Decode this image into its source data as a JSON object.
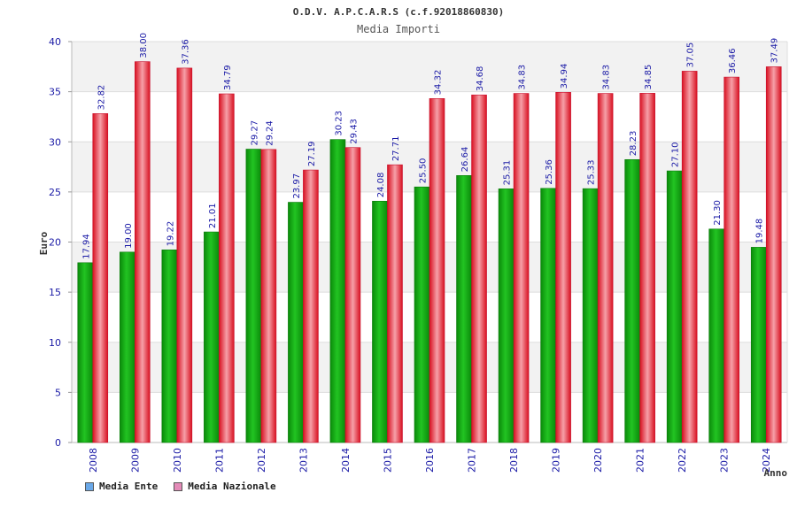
{
  "colors": {
    "ente": "#1fb51f",
    "ente_dark": "#0b7a0b",
    "nazionale": "#f0364a",
    "nazionale_dark": "#c8102e",
    "legend_ente": "#6aa8e8",
    "legend_nazionale": "#e48bb8",
    "band": "#f2f2f2"
  },
  "legend": {
    "ente": "Media Ente",
    "nazionale": "Media Nazionale"
  },
  "chart_data": {
    "type": "bar",
    "title": "O.D.V. A.P.C.A.R.S (c.f.92018860830)",
    "subtitle": "Media Importi",
    "xlabel": "Anno",
    "ylabel": "Euro",
    "ylim": [
      0,
      40
    ],
    "yticks": [
      0,
      5,
      10,
      15,
      20,
      25,
      30,
      35,
      40
    ],
    "categories": [
      "2008",
      "2009",
      "2010",
      "2011",
      "2012",
      "2013",
      "2014",
      "2015",
      "2016",
      "2017",
      "2018",
      "2019",
      "2020",
      "2021",
      "2022",
      "2023",
      "2024"
    ],
    "series": [
      {
        "name": "Media Ente",
        "values": [
          17.94,
          19.0,
          19.22,
          21.01,
          29.27,
          23.97,
          30.23,
          24.08,
          25.5,
          26.64,
          25.31,
          25.36,
          25.33,
          28.23,
          27.1,
          21.3,
          19.48
        ],
        "labels": [
          "17.94",
          "19.00",
          "19.22",
          "21.01",
          "29.27",
          "23.97",
          "30.23",
          "24.08",
          "25.50",
          "26.64",
          "25.31",
          "25.36",
          "25.33",
          "28.23",
          "27.10",
          "21.30",
          "19.48"
        ]
      },
      {
        "name": "Media Nazionale",
        "values": [
          32.82,
          38.0,
          37.36,
          34.79,
          29.24,
          27.19,
          29.43,
          27.71,
          34.32,
          34.68,
          34.83,
          34.94,
          34.83,
          34.85,
          37.05,
          36.46,
          37.49
        ],
        "labels": [
          "32.82",
          "38.00",
          "37.36",
          "34.79",
          "29.24",
          "27.19",
          "29.43",
          "27.71",
          "34.32",
          "34.68",
          "34.83",
          "34.94",
          "34.83",
          "34.85",
          "37.05",
          "36.46",
          "37.49"
        ]
      }
    ]
  }
}
